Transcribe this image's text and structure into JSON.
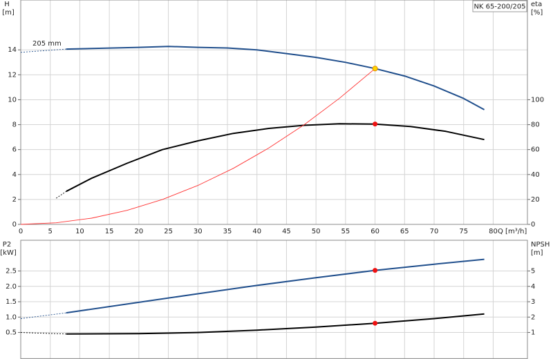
{
  "chart_data": [
    {
      "type": "line",
      "model": "NK 65-200/205",
      "annotation": "205 mm",
      "y_label": "H",
      "y_unit": "[m]",
      "y2_label": "eta",
      "y2_unit": "[%]",
      "x_label": "Q [m³/h]",
      "xlim": [
        0,
        85.8
      ],
      "xticks": [
        0,
        5,
        10,
        15,
        20,
        25,
        30,
        35,
        40,
        45,
        50,
        55,
        60,
        65,
        70,
        75,
        80
      ],
      "ylim": [
        0,
        18
      ],
      "yticks": [
        0,
        2,
        4,
        6,
        8,
        10,
        12,
        14
      ],
      "y2lim": [
        0,
        180
      ],
      "y2ticks": [
        0,
        20,
        40,
        60,
        80,
        100
      ],
      "grid": true,
      "series": [
        {
          "color": "#1f4e8c",
          "dashed": true,
          "x": [
            0,
            7.7
          ],
          "values": [
            13.8,
            14.06
          ]
        },
        {
          "color": "#1f4e8c",
          "x": [
            7.7,
            20,
            25,
            30,
            35,
            40,
            45,
            50,
            55,
            60,
            65,
            70,
            75,
            78.5
          ],
          "values": [
            14.06,
            14.2,
            14.28,
            14.2,
            14.15,
            14.0,
            13.7,
            13.4,
            13.0,
            12.5,
            11.9,
            11.1,
            10.1,
            9.2
          ]
        },
        {
          "color": "#000000",
          "dashed": true,
          "axis": "y2",
          "x": [
            6,
            7.7
          ],
          "values": [
            21,
            26.5
          ]
        },
        {
          "color": "#000000",
          "axis": "y2",
          "x": [
            7.7,
            12,
            18,
            24,
            30,
            36,
            42,
            48,
            54,
            60,
            66,
            72,
            78.5
          ],
          "values": [
            26.5,
            37,
            49,
            60,
            67,
            73,
            77,
            79.5,
            80.7,
            80.5,
            78.5,
            74.6,
            68
          ]
        },
        {
          "color": "#ff3030",
          "thin": true,
          "x": [
            0,
            6,
            12,
            18,
            24,
            30,
            36,
            42,
            48,
            54,
            60
          ],
          "values": [
            0,
            0.125,
            0.5,
            1.125,
            2,
            3.125,
            4.5,
            6.125,
            8,
            10.125,
            12.5
          ]
        },
        {
          "color": "#ffd700",
          "marker": true,
          "x": [
            60
          ],
          "values": [
            12.5
          ]
        },
        {
          "color": "#ee1111",
          "marker": true,
          "axis": "y2",
          "x": [
            60
          ],
          "values": [
            80.5
          ]
        }
      ]
    },
    {
      "type": "line",
      "y_label": "P2",
      "y_unit": "[kW]",
      "y2_label": "NPSH",
      "y2_unit": "[m]",
      "xlim": [
        0,
        85.8
      ],
      "xticks": [
        0,
        5,
        10,
        15,
        20,
        25,
        30,
        35,
        40,
        45,
        50,
        55,
        60,
        65,
        70,
        75,
        80
      ],
      "ylim": [
        -0.35,
        3.5
      ],
      "yticks": [
        0.5,
        {
          "value": 1,
          "label": "1.0"
        },
        1.5,
        {
          "value": 2,
          "label": "2.0"
        },
        2.5
      ],
      "y2lim": [
        -0.7,
        7
      ],
      "y2ticks": [
        1,
        2,
        3,
        4,
        5
      ],
      "grid": true,
      "series": [
        {
          "color": "#1f4e8c",
          "dashed": true,
          "x": [
            0,
            7.7
          ],
          "values": [
            0.95,
            1.14
          ]
        },
        {
          "color": "#1f4e8c",
          "x": [
            7.7,
            20,
            30,
            40,
            50,
            60,
            70,
            78.5
          ],
          "values": [
            1.14,
            1.48,
            1.76,
            2.03,
            2.28,
            2.52,
            2.72,
            2.88
          ]
        },
        {
          "color": "#000000",
          "dashed": true,
          "axis": "y2",
          "x": [
            0,
            7.7
          ],
          "values": [
            1.0,
            0.9
          ]
        },
        {
          "color": "#000000",
          "axis": "y2",
          "x": [
            7.7,
            20,
            30,
            40,
            50,
            60,
            70,
            78.5
          ],
          "values": [
            0.9,
            0.92,
            1.0,
            1.15,
            1.35,
            1.6,
            1.9,
            2.2
          ]
        },
        {
          "color": "#ee1111",
          "marker": true,
          "x": [
            60
          ],
          "values": [
            2.52
          ]
        },
        {
          "color": "#ee1111",
          "marker": true,
          "axis": "y2",
          "x": [
            60
          ],
          "values": [
            1.6
          ]
        }
      ]
    }
  ]
}
